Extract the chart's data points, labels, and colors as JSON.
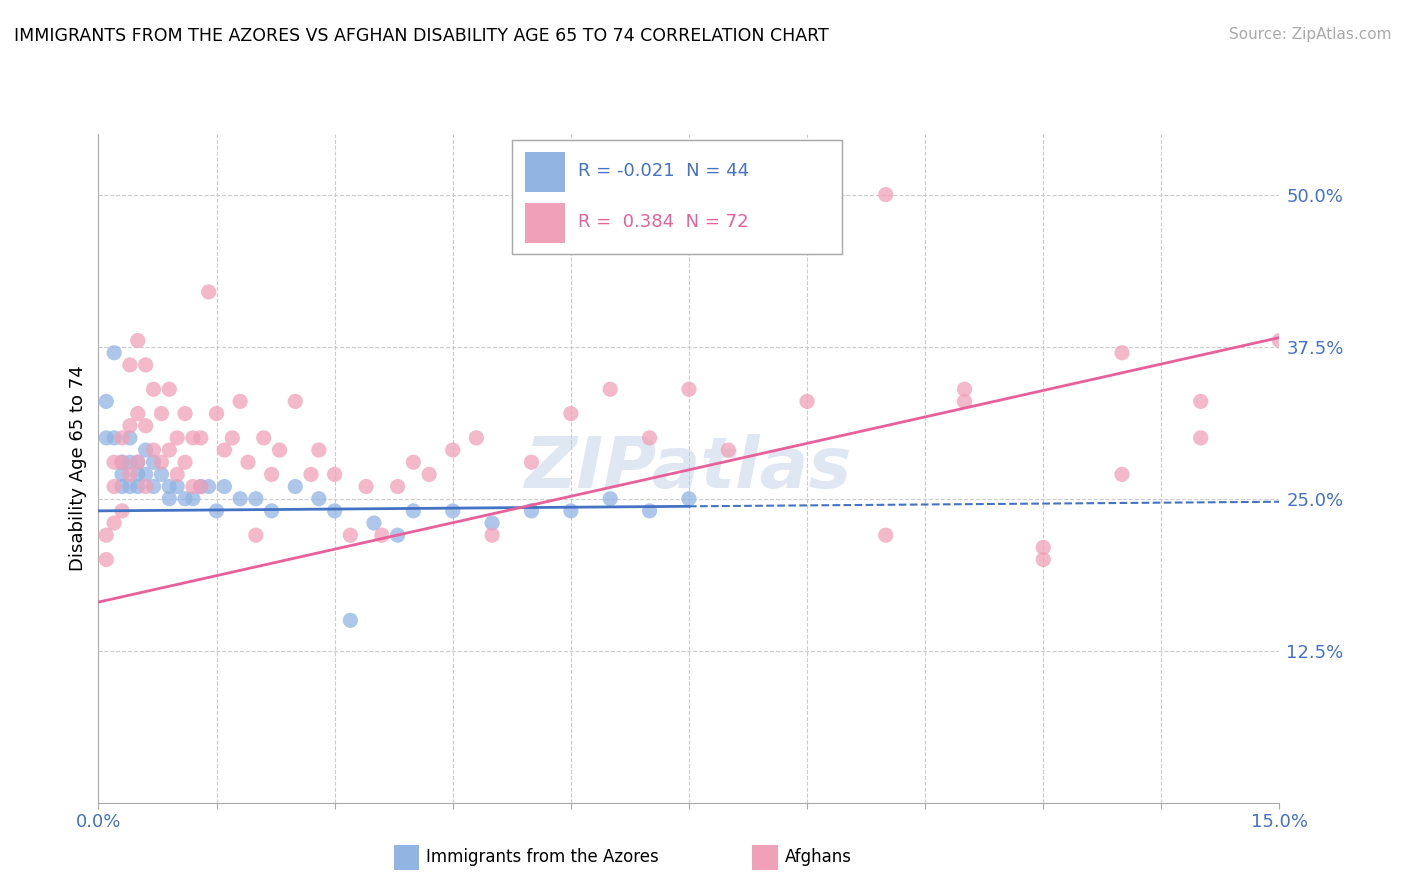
{
  "title": "IMMIGRANTS FROM THE AZORES VS AFGHAN DISABILITY AGE 65 TO 74 CORRELATION CHART",
  "source": "Source: ZipAtlas.com",
  "ylabel": "Disability Age 65 to 74",
  "xlim": [
    0.0,
    0.15
  ],
  "ylim": [
    0.0,
    0.55
  ],
  "yticks": [
    0.125,
    0.25,
    0.375,
    0.5
  ],
  "ytick_labels": [
    "12.5%",
    "25.0%",
    "37.5%",
    "50.0%"
  ],
  "xticks": [
    0.0,
    0.015,
    0.03,
    0.045,
    0.06,
    0.075,
    0.09,
    0.105,
    0.12,
    0.135,
    0.15
  ],
  "xtick_labels": [
    "0.0%",
    "",
    "",
    "",
    "",
    "",
    "",
    "",
    "",
    "",
    "15.0%"
  ],
  "legend_r_azores": "-0.021",
  "legend_n_azores": "44",
  "legend_r_afghans": "0.384",
  "legend_n_afghans": "72",
  "color_azores": "#92b4e3",
  "color_afghans": "#f0a0b8",
  "line_color_azores": "#4472c4",
  "line_color_afghans": "#e8609a",
  "azores_x": [
    0.001,
    0.001,
    0.002,
    0.002,
    0.003,
    0.003,
    0.003,
    0.004,
    0.004,
    0.004,
    0.005,
    0.005,
    0.005,
    0.006,
    0.006,
    0.007,
    0.007,
    0.008,
    0.009,
    0.009,
    0.01,
    0.011,
    0.012,
    0.013,
    0.014,
    0.015,
    0.016,
    0.018,
    0.02,
    0.022,
    0.025,
    0.028,
    0.03,
    0.032,
    0.035,
    0.038,
    0.04,
    0.045,
    0.05,
    0.055,
    0.06,
    0.065,
    0.07,
    0.075
  ],
  "azores_y": [
    0.33,
    0.3,
    0.37,
    0.3,
    0.27,
    0.28,
    0.26,
    0.3,
    0.28,
    0.26,
    0.28,
    0.27,
    0.26,
    0.29,
    0.27,
    0.28,
    0.26,
    0.27,
    0.26,
    0.25,
    0.26,
    0.25,
    0.25,
    0.26,
    0.26,
    0.24,
    0.26,
    0.25,
    0.25,
    0.24,
    0.26,
    0.25,
    0.24,
    0.15,
    0.23,
    0.22,
    0.24,
    0.24,
    0.23,
    0.24,
    0.24,
    0.25,
    0.24,
    0.25
  ],
  "afghans_x": [
    0.001,
    0.001,
    0.002,
    0.002,
    0.002,
    0.003,
    0.003,
    0.003,
    0.004,
    0.004,
    0.004,
    0.005,
    0.005,
    0.005,
    0.006,
    0.006,
    0.006,
    0.007,
    0.007,
    0.008,
    0.008,
    0.009,
    0.009,
    0.01,
    0.01,
    0.011,
    0.011,
    0.012,
    0.012,
    0.013,
    0.013,
    0.014,
    0.015,
    0.016,
    0.017,
    0.018,
    0.019,
    0.02,
    0.021,
    0.022,
    0.023,
    0.025,
    0.027,
    0.028,
    0.03,
    0.032,
    0.034,
    0.036,
    0.038,
    0.04,
    0.042,
    0.045,
    0.048,
    0.05,
    0.055,
    0.06,
    0.065,
    0.07,
    0.075,
    0.08,
    0.09,
    0.1,
    0.11,
    0.12,
    0.13,
    0.14,
    0.15,
    0.1,
    0.11,
    0.12,
    0.13,
    0.14
  ],
  "afghans_y": [
    0.22,
    0.2,
    0.28,
    0.26,
    0.23,
    0.3,
    0.28,
    0.24,
    0.36,
    0.31,
    0.27,
    0.38,
    0.32,
    0.28,
    0.36,
    0.31,
    0.26,
    0.34,
    0.29,
    0.32,
    0.28,
    0.34,
    0.29,
    0.3,
    0.27,
    0.32,
    0.28,
    0.3,
    0.26,
    0.3,
    0.26,
    0.42,
    0.32,
    0.29,
    0.3,
    0.33,
    0.28,
    0.22,
    0.3,
    0.27,
    0.29,
    0.33,
    0.27,
    0.29,
    0.27,
    0.22,
    0.26,
    0.22,
    0.26,
    0.28,
    0.27,
    0.29,
    0.3,
    0.22,
    0.28,
    0.32,
    0.34,
    0.3,
    0.34,
    0.29,
    0.33,
    0.22,
    0.34,
    0.21,
    0.37,
    0.3,
    0.38,
    0.5,
    0.33,
    0.2,
    0.27,
    0.33
  ]
}
